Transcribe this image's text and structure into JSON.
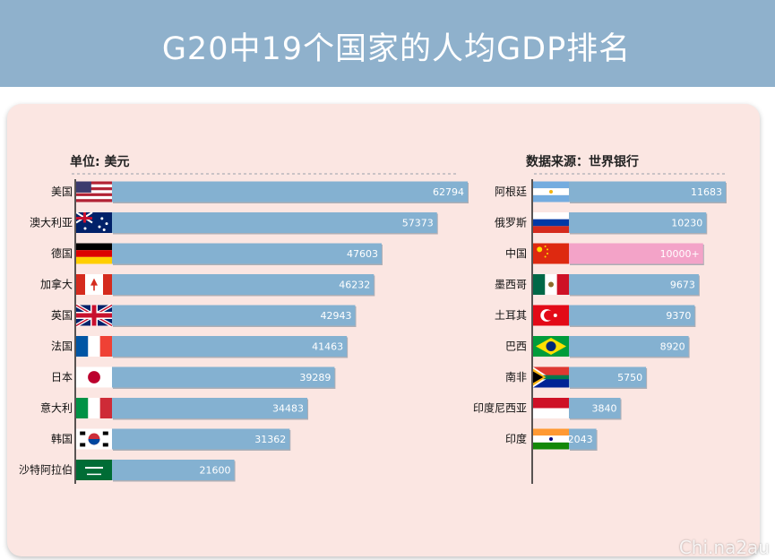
{
  "title": "G20中19个国家的人均GDP排名",
  "unit_label": "单位: 美元",
  "source_label": "数据来源：世界银行",
  "watermark": "Chi.na2au",
  "colors": {
    "bar": "#84b1d1",
    "highlight_bar": "#f3a3c8",
    "highlight_text": "#cc2222",
    "header": "#8fb1cc",
    "panel": "#fbe6e2"
  },
  "chart_data": [
    {
      "type": "bar",
      "orientation": "horizontal",
      "title": "",
      "xlabel": "",
      "ylabel": "",
      "unit": "单位: 美元",
      "categories": [
        "美国",
        "澳大利亚",
        "德国",
        "加拿大",
        "英国",
        "法国",
        "日本",
        "意大利",
        "韩国",
        "沙特阿拉伯"
      ],
      "values": [
        62794,
        57373,
        47603,
        46232,
        42943,
        41463,
        39289,
        34483,
        31362,
        21600
      ],
      "value_labels": [
        "62794",
        "57373",
        "47603",
        "46232",
        "42943",
        "41463",
        "39289",
        "34483",
        "31362",
        "21600"
      ],
      "flags": [
        "us-flag",
        "au-flag",
        "de-flag",
        "ca-flag",
        "gb-flag",
        "fr-flag",
        "jp-flag",
        "it-flag",
        "kr-flag",
        "sa-flag"
      ]
    },
    {
      "type": "bar",
      "orientation": "horizontal",
      "title": "",
      "xlabel": "",
      "ylabel": "",
      "source": "数据来源：世界银行",
      "categories": [
        "阿根廷",
        "俄罗斯",
        "中国",
        "墨西哥",
        "土耳其",
        "巴西",
        "南非",
        "印度尼西亚",
        "印度"
      ],
      "values": [
        11683,
        10230,
        10000,
        9673,
        9370,
        8920,
        5750,
        3840,
        2043
      ],
      "value_labels": [
        "11683",
        "10230",
        "10000+",
        "9673",
        "9370",
        "8920",
        "5750",
        "3840",
        "2043"
      ],
      "highlight": "中国",
      "flags": [
        "ar-flag",
        "ru-flag",
        "cn-flag",
        "mx-flag",
        "tr-flag",
        "br-flag",
        "za-flag",
        "id-flag",
        "in-flag"
      ]
    }
  ]
}
